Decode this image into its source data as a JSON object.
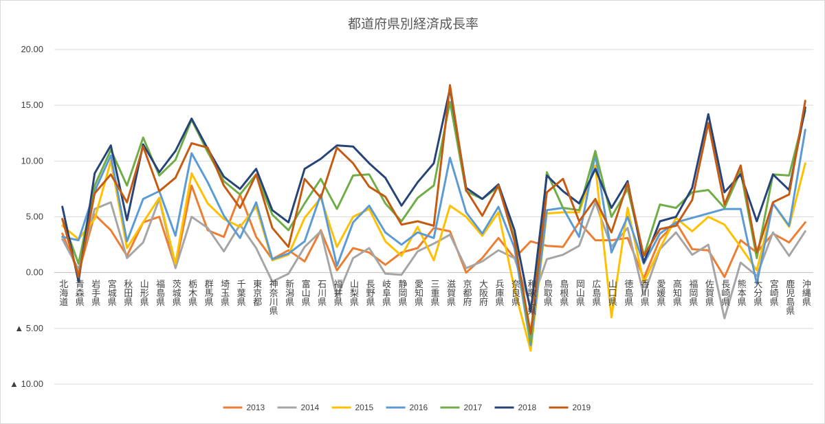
{
  "chart_data": {
    "type": "line",
    "title": "都道府県別経済成長率",
    "ylim": [
      -10,
      20
    ],
    "y_ticks": [
      {
        "value": 20,
        "label": "20.00"
      },
      {
        "value": 15,
        "label": "15.00"
      },
      {
        "value": 10,
        "label": "10.00"
      },
      {
        "value": 5,
        "label": "5.00"
      },
      {
        "value": 0,
        "label": "0.00"
      },
      {
        "value": -5,
        "label": "▲ 5.00"
      },
      {
        "value": -10,
        "label": "▲ 10.00"
      }
    ],
    "grid": true,
    "legend_position": "bottom",
    "categories": [
      "北海道",
      "青森県",
      "岩手県",
      "宮城県",
      "秋田県",
      "山形県",
      "福島県",
      "茨城県",
      "栃木県",
      "群馬県",
      "埼玉県",
      "千葉県",
      "東京都",
      "神奈川県",
      "新潟県",
      "富山県",
      "石川県",
      "福井県",
      "山梨県",
      "長野県",
      "岐阜県",
      "静岡県",
      "愛知県",
      "三重県",
      "滋賀県",
      "京都府",
      "大阪府",
      "兵庫県",
      "奈良県",
      "和歌山県",
      "鳥取県",
      "島根県",
      "岡山県",
      "広島県",
      "山口県",
      "徳島県",
      "香川県",
      "愛媛県",
      "高知県",
      "福岡県",
      "佐賀県",
      "長崎県",
      "熊本県",
      "大分県",
      "宮崎県",
      "鹿児島県",
      "沖縄県"
    ],
    "series": [
      {
        "name": "2013",
        "color": "#ED7D31",
        "values": [
          3.5,
          0.0,
          5.2,
          3.8,
          1.5,
          4.5,
          5.0,
          0.5,
          7.8,
          3.8,
          3.2,
          7.0,
          3.2,
          1.2,
          2.0,
          1.0,
          3.8,
          0.2,
          2.2,
          1.8,
          0.7,
          1.8,
          2.2,
          4.0,
          3.7,
          0.0,
          1.3,
          3.1,
          1.3,
          2.8,
          2.4,
          2.3,
          4.5,
          2.9,
          2.9,
          3.1,
          -0.5,
          3.0,
          4.5,
          2.1,
          2.0,
          -0.4,
          2.9,
          1.8,
          3.5,
          2.7,
          4.5
        ]
      },
      {
        "name": "2014",
        "color": "#A5A5A5",
        "values": [
          3.0,
          0.3,
          5.7,
          6.3,
          1.3,
          2.7,
          6.6,
          0.4,
          5.0,
          4.0,
          1.9,
          4.3,
          2.2,
          -0.8,
          -0.1,
          2.3,
          3.7,
          -2.2,
          1.3,
          2.2,
          -0.1,
          -0.2,
          1.9,
          2.6,
          3.4,
          0.4,
          1.0,
          2.0,
          1.3,
          -3.0,
          1.2,
          1.6,
          2.4,
          6.3,
          2.3,
          4.0,
          -2.0,
          2.1,
          3.6,
          1.6,
          2.5,
          -4.1,
          0.9,
          -0.3,
          3.6,
          1.5,
          3.7
        ]
      },
      {
        "name": "2015",
        "color": "#FFC000",
        "values": [
          4.2,
          3.0,
          4.8,
          10.0,
          2.2,
          4.5,
          6.7,
          0.8,
          8.9,
          6.2,
          4.8,
          4.1,
          5.9,
          1.1,
          1.6,
          4.9,
          6.7,
          2.3,
          5.0,
          5.7,
          2.8,
          1.5,
          4.1,
          1.1,
          6.0,
          5.0,
          3.3,
          5.4,
          -1.5,
          -7.0,
          5.3,
          5.4,
          5.4,
          9.6,
          -4.0,
          5.8,
          -0.9,
          2.2,
          4.9,
          3.7,
          5.0,
          4.3,
          2.3,
          0.2,
          6.2,
          4.1,
          9.8
        ]
      },
      {
        "name": "2016",
        "color": "#5B9BD5",
        "values": [
          3.2,
          2.9,
          7.3,
          10.5,
          2.8,
          6.6,
          7.3,
          3.3,
          10.7,
          8.1,
          5.1,
          3.1,
          6.3,
          1.2,
          1.7,
          2.8,
          7.0,
          0.6,
          4.5,
          6.0,
          3.6,
          2.5,
          3.6,
          3.1,
          10.3,
          5.4,
          3.5,
          5.9,
          2.2,
          -6.5,
          5.6,
          5.8,
          3.2,
          10.6,
          1.8,
          5.0,
          0.8,
          3.5,
          4.5,
          4.9,
          5.3,
          5.7,
          5.7,
          -1.0,
          6.2,
          4.2,
          12.8
        ]
      },
      {
        "name": "2017",
        "color": "#70AD47",
        "values": [
          4.8,
          0.8,
          7.8,
          11.0,
          7.8,
          12.1,
          8.7,
          10.1,
          13.7,
          10.8,
          8.2,
          7.0,
          8.8,
          5.2,
          3.8,
          6.2,
          8.4,
          5.7,
          8.7,
          8.8,
          6.2,
          4.6,
          6.7,
          7.8,
          15.3,
          7.3,
          6.6,
          7.7,
          3.1,
          -6.2,
          9.0,
          5.8,
          5.6,
          10.9,
          5.0,
          7.5,
          1.5,
          6.1,
          5.8,
          7.2,
          7.4,
          5.8,
          9.1,
          1.3,
          8.8,
          8.7,
          14.5
        ]
      },
      {
        "name": "2018",
        "color": "#264478",
        "values": [
          5.9,
          -0.8,
          8.9,
          11.4,
          4.7,
          11.5,
          9.0,
          10.9,
          13.8,
          11.1,
          8.6,
          7.5,
          9.3,
          5.6,
          4.5,
          9.3,
          10.2,
          11.4,
          11.3,
          9.8,
          8.5,
          6.0,
          8.1,
          9.8,
          16.5,
          7.6,
          6.6,
          7.9,
          3.8,
          -3.5,
          8.7,
          7.3,
          6.2,
          9.3,
          5.8,
          8.2,
          0.9,
          4.6,
          5.0,
          7.6,
          14.2,
          7.2,
          8.8,
          4.6,
          8.8,
          7.4,
          14.8
        ]
      },
      {
        "name": "2019",
        "color": "#C55A11",
        "values": [
          4.8,
          -0.4,
          7.1,
          8.8,
          6.3,
          11.3,
          7.3,
          8.5,
          11.6,
          11.2,
          7.8,
          5.8,
          8.8,
          4.0,
          2.3,
          8.4,
          6.7,
          11.2,
          9.8,
          7.7,
          6.8,
          4.3,
          4.6,
          4.2,
          16.8,
          7.4,
          5.1,
          7.8,
          2.8,
          -5.5,
          7.2,
          8.4,
          4.6,
          6.6,
          3.6,
          8.0,
          1.5,
          3.9,
          4.2,
          6.5,
          13.4,
          6.1,
          9.6,
          1.8,
          6.3,
          7.0,
          15.4
        ]
      }
    ]
  }
}
